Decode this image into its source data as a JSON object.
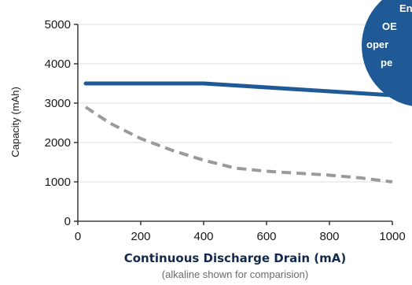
{
  "colors": {
    "lithium_series": "#1f5a96",
    "alkaline_series": "#9a9a9a",
    "badge_fill": "#1f5a96",
    "badge_text": "#ffffff",
    "axis": "#1a1a1a",
    "grid": "#dcdcdc",
    "xlabel_color": "#13294b",
    "subtitle_color": "#6b6b6b"
  },
  "badge": {
    "lines": [
      "En",
      "OE",
      "oper",
      "pe"
    ]
  },
  "chart_data": {
    "type": "line",
    "title": "",
    "xlabel": "Continuous Discharge Drain (mA)",
    "xlabel_note": "(alkaline shown for comparision)",
    "ylabel": "Capacity (mAh)",
    "xlim": [
      0,
      1000
    ],
    "ylim": [
      0,
      5000
    ],
    "x_ticks": [
      0,
      200,
      400,
      600,
      800,
      1000
    ],
    "y_ticks": [
      0,
      1000,
      2000,
      3000,
      4000,
      5000
    ],
    "grid": true,
    "legend": "none",
    "series": [
      {
        "style": "solid",
        "color": "#1f5a96",
        "x": [
          25,
          400,
          1000
        ],
        "y": [
          3500,
          3500,
          3200
        ]
      },
      {
        "style": "dashed",
        "color": "#9a9a9a",
        "x": [
          25,
          100,
          200,
          300,
          400,
          500,
          600,
          700,
          800,
          900,
          1000
        ],
        "y": [
          2900,
          2500,
          2100,
          1800,
          1550,
          1350,
          1270,
          1220,
          1170,
          1100,
          1000
        ]
      }
    ]
  }
}
